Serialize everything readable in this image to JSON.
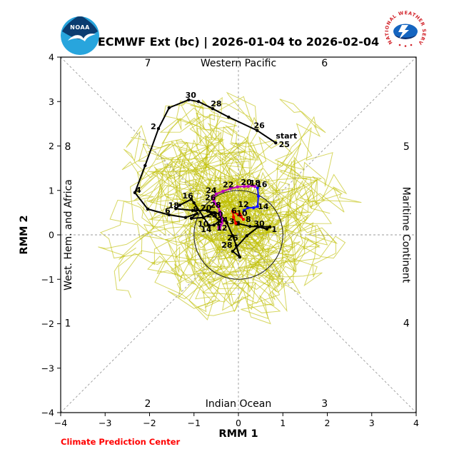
{
  "figure": {
    "title": "ECMWF Ext (bc) | 2026-01-04 to 2026-02-04"
  },
  "logos": {
    "noaa_text": "NOAA",
    "nws_ring_text": "NATIONAL WEATHER SERVICE"
  },
  "footer": {
    "credit": "Climate Prediction Center"
  },
  "chart_data": {
    "type": "line",
    "title": "ECMWF Ext (bc) | 2026-01-04 to 2026-02-04",
    "xlabel": "RMM 1",
    "ylabel": "RMM 2",
    "xlim": [
      -4,
      4
    ],
    "ylim": [
      -4,
      4
    ],
    "xticks": [
      -4,
      -3,
      -2,
      -1,
      0,
      1,
      2,
      3,
      4
    ],
    "yticks": [
      -4,
      -3,
      -2,
      -1,
      0,
      1,
      2,
      3,
      4
    ],
    "weak_circle_radius": 1,
    "phase_labels": [
      {
        "text": "1",
        "x": -3.84,
        "y": -1.98
      },
      {
        "text": "2",
        "x": -2.04,
        "y": -3.79
      },
      {
        "text": "3",
        "x": 1.94,
        "y": -3.79
      },
      {
        "text": "4",
        "x": 3.78,
        "y": -1.98
      },
      {
        "text": "5",
        "x": 3.78,
        "y": 1.99
      },
      {
        "text": "6",
        "x": 1.94,
        "y": 3.87
      },
      {
        "text": "7",
        "x": -2.04,
        "y": 3.87
      },
      {
        "text": "8",
        "x": -3.84,
        "y": 1.99
      }
    ],
    "region_labels": [
      {
        "text": "Western Pacific",
        "x": 0,
        "y": 3.87,
        "rotate": 0
      },
      {
        "text": "Indian Ocean",
        "x": 0,
        "y": -3.79,
        "rotate": 0
      },
      {
        "text": "West. Hem. and Africa",
        "x": -3.84,
        "y": 0,
        "rotate": -90
      },
      {
        "text": "Maritime Continent",
        "x": 3.78,
        "y": 0,
        "rotate": 90
      }
    ],
    "start_annotation": {
      "text": "start",
      "x": 0.84,
      "y": 2.07,
      "dx": 15,
      "dy": -10
    },
    "series": [
      {
        "name": "observed-rmm",
        "color": "#000000",
        "width": 2,
        "marker_r": 2.2,
        "end_marker": 6,
        "points": [
          {
            "x": 0.84,
            "y": 2.07,
            "label": "25",
            "dx": 12,
            "dy": 2
          },
          {
            "x": 0.42,
            "y": 2.35,
            "label": "26",
            "dx": 3,
            "dy": -7
          },
          {
            "x": -0.22,
            "y": 2.65
          },
          {
            "x": -0.58,
            "y": 2.84,
            "label": "28",
            "dx": 5,
            "dy": -7
          },
          {
            "x": -0.9,
            "y": 3.0
          },
          {
            "x": -1.12,
            "y": 3.04,
            "label": "30",
            "dx": 3,
            "dy": -7
          },
          {
            "x": -1.56,
            "y": 2.86
          },
          {
            "x": -1.8,
            "y": 2.39,
            "label": "2",
            "dx": -7,
            "dy": -3
          },
          {
            "x": -2.1,
            "y": 1.56
          },
          {
            "x": -2.33,
            "y": 0.95,
            "label": "4",
            "dx": 5,
            "dy": -4
          },
          {
            "x": -2.04,
            "y": 0.58
          },
          {
            "x": -1.56,
            "y": 0.45,
            "label": "6",
            "dx": -2,
            "dy": -6
          },
          {
            "x": -1.19,
            "y": 0.39
          },
          {
            "x": -0.93,
            "y": 0.48,
            "label": "8",
            "dx": -2,
            "dy": -6
          },
          {
            "x": -1.06,
            "y": 0.37
          },
          {
            "x": -0.79,
            "y": 0.39,
            "label": "10",
            "dx": 0,
            "dy": 9
          },
          {
            "x": -0.61,
            "y": 0.47
          },
          {
            "x": -0.42,
            "y": 0.32,
            "label": "12",
            "dx": 3,
            "dy": 10
          },
          {
            "x": -0.55,
            "y": 0.22
          },
          {
            "x": -0.66,
            "y": 0.21,
            "label": "14",
            "dx": -4,
            "dy": 5
          },
          {
            "x": -1.0,
            "y": 0.72
          },
          {
            "x": -1.06,
            "y": 0.8,
            "label": "16",
            "dx": -5,
            "dy": -5
          },
          {
            "x": -1.32,
            "y": 0.67
          },
          {
            "x": -1.41,
            "y": 0.59,
            "label": "18",
            "dx": -3,
            "dy": -5
          },
          {
            "x": -1.03,
            "y": 0.55
          },
          {
            "x": -0.71,
            "y": 0.55,
            "label": "20",
            "dx": -1,
            "dy": -4
          },
          {
            "x": -0.55,
            "y": 0.5
          },
          {
            "x": -0.42,
            "y": 0.47,
            "label": "22",
            "dx": -11,
            "dy": 1
          },
          {
            "x": -0.35,
            "y": 0.37
          },
          {
            "x": -0.26,
            "y": 0.27,
            "label": "24",
            "dx": -6,
            "dy": -4
          },
          {
            "x": -0.13,
            "y": -0.02
          },
          {
            "x": -0.05,
            "y": -0.24,
            "label": "26",
            "dx": -5,
            "dy": -11
          },
          {
            "x": 0.03,
            "y": -0.5
          },
          {
            "x": -0.13,
            "y": -0.37,
            "label": "28",
            "dx": -8,
            "dy": -9
          },
          {
            "x": 0.19,
            "y": -0.02
          },
          {
            "x": 0.45,
            "y": 0.18,
            "label": "30",
            "dx": 1,
            "dy": -5
          },
          {
            "x": 0.64,
            "y": 0.13
          },
          {
            "x": 0.71,
            "y": 0.18,
            "label": "1",
            "dx": 6,
            "dy": 3
          },
          {
            "x": 0.26,
            "y": 0.19
          },
          {
            "x": -0.02,
            "y": 0.26,
            "label": "3",
            "dx": -8,
            "dy": -3
          }
        ]
      },
      {
        "name": "forecast-days-1-7",
        "color": "#f80000",
        "width": 2,
        "marker_r": 2.2,
        "end_marker": 0,
        "points": [
          {
            "x": -0.06,
            "y": 0.26
          },
          {
            "x": -0.11,
            "y": 0.4
          },
          {
            "x": -0.13,
            "y": 0.53,
            "label": "6",
            "dx": 2,
            "dy": -1
          },
          {
            "x": 0.0,
            "y": 0.45
          },
          {
            "x": 0.11,
            "y": 0.35,
            "label": "8",
            "dx": 7,
            "dy": 0
          },
          {
            "x": 0.06,
            "y": 0.42
          },
          {
            "x": 0.03,
            "y": 0.47,
            "label": "10",
            "dx": 3,
            "dy": -1
          }
        ]
      },
      {
        "name": "forecast-days-8-13",
        "color": "#1414ff",
        "width": 2,
        "marker_r": 2.2,
        "end_marker": 0,
        "points": [
          {
            "x": 0.13,
            "y": 0.55
          },
          {
            "x": 0.21,
            "y": 0.61,
            "label": "12",
            "dx": -6,
            "dy": -5
          },
          {
            "x": 0.34,
            "y": 0.61
          },
          {
            "x": 0.43,
            "y": 0.64,
            "label": "14",
            "dx": 8,
            "dy": 0
          },
          {
            "x": 0.45,
            "y": 0.87
          },
          {
            "x": 0.43,
            "y": 1.06,
            "label": "16",
            "dx": 6,
            "dy": -5
          }
        ]
      },
      {
        "name": "forecast-days-14-31",
        "color": "#bf00bf",
        "width": 2,
        "marker_r": 2.2,
        "end_marker": 5,
        "points": [
          {
            "x": 0.37,
            "y": 1.09
          },
          {
            "x": 0.31,
            "y": 1.11,
            "label": "18",
            "dx": 4,
            "dy": -4
          },
          {
            "x": 0.22,
            "y": 1.09
          },
          {
            "x": 0.13,
            "y": 1.09,
            "label": "20",
            "dx": 3,
            "dy": -6
          },
          {
            "x": -0.02,
            "y": 1.08
          },
          {
            "x": -0.18,
            "y": 1.04,
            "label": "22",
            "dx": -3,
            "dy": -6
          },
          {
            "x": -0.35,
            "y": 0.98
          },
          {
            "x": -0.5,
            "y": 0.92,
            "label": "24",
            "dx": -7,
            "dy": -5
          },
          {
            "x": -0.56,
            "y": 0.84
          },
          {
            "x": -0.55,
            "y": 0.76,
            "label": "26",
            "dx": -5,
            "dy": -5
          },
          {
            "x": -0.5,
            "y": 0.69
          },
          {
            "x": -0.45,
            "y": 0.63,
            "label": "28",
            "dx": -4,
            "dy": -3
          },
          {
            "x": -0.42,
            "y": 0.53
          },
          {
            "x": -0.39,
            "y": 0.43,
            "label": "30",
            "dx": -5,
            "dy": -2
          },
          {
            "x": -0.37,
            "y": 0.35
          },
          {
            "x": -0.37,
            "y": 0.27,
            "label": "1",
            "dx": -5,
            "dy": -1
          },
          {
            "x": -0.4,
            "y": 0.22
          },
          {
            "x": -0.42,
            "y": 0.19
          },
          {
            "x": -0.43,
            "y": 0.16
          }
        ]
      }
    ],
    "ensemble": {
      "name": "ensemble-members",
      "color": "#bfbf00",
      "opacity": 0.62,
      "count": 51,
      "steps": 31,
      "seed": 9,
      "start": {
        "x": -0.05,
        "y": 0.28
      },
      "drift_center": {
        "x": -0.3,
        "y": 0.45
      },
      "max_radius": 3.15
    }
  }
}
